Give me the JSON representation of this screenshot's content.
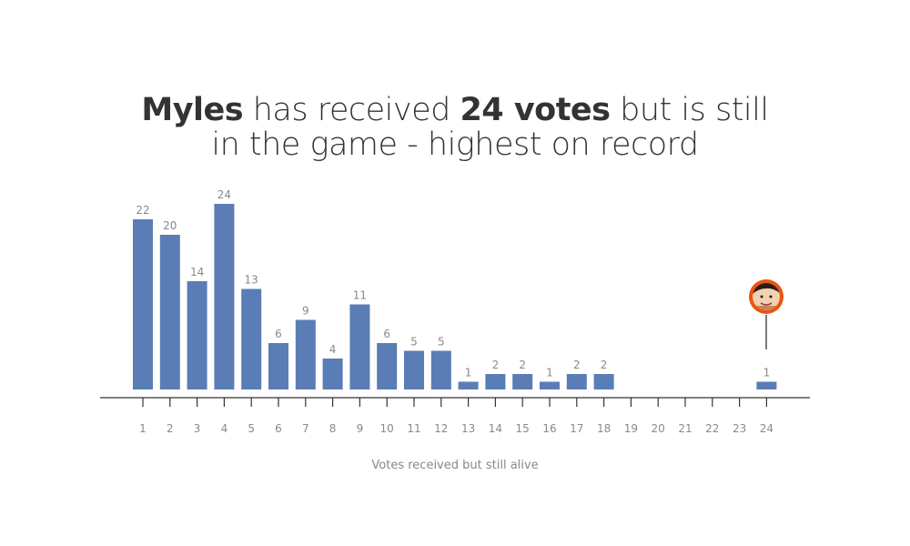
{
  "title": {
    "line1_bold_name": "Myles",
    "line1_mid": " has received ",
    "line1_bold_votes": "24 votes",
    "line1_end": " but is still",
    "line2": "in the game - highest on record"
  },
  "colors": {
    "bar": "#5a7db5",
    "axis": "#333333",
    "highlight_ring": "#e8560c"
  },
  "chart_data": {
    "type": "bar",
    "xlabel": "Votes received but still alive",
    "ylabel": "",
    "categories": [
      "1",
      "2",
      "3",
      "4",
      "5",
      "6",
      "7",
      "8",
      "9",
      "10",
      "11",
      "12",
      "13",
      "14",
      "15",
      "16",
      "17",
      "18",
      "19",
      "20",
      "21",
      "22",
      "23",
      "24"
    ],
    "values": [
      22,
      20,
      14,
      24,
      13,
      6,
      9,
      4,
      11,
      6,
      5,
      5,
      1,
      2,
      2,
      1,
      2,
      2,
      0,
      0,
      0,
      0,
      0,
      1
    ],
    "value_labels": [
      "22",
      "20",
      "14",
      "24",
      "13",
      "6",
      "9",
      "4",
      "11",
      "6",
      "5",
      "5",
      "1",
      "2",
      "2",
      "1",
      "2",
      "2",
      "",
      "",
      "",
      "",
      "",
      "1"
    ],
    "ylim": [
      0,
      24
    ],
    "grid": false,
    "highlight": {
      "category": "24",
      "icon": "player-avatar-icon"
    }
  }
}
